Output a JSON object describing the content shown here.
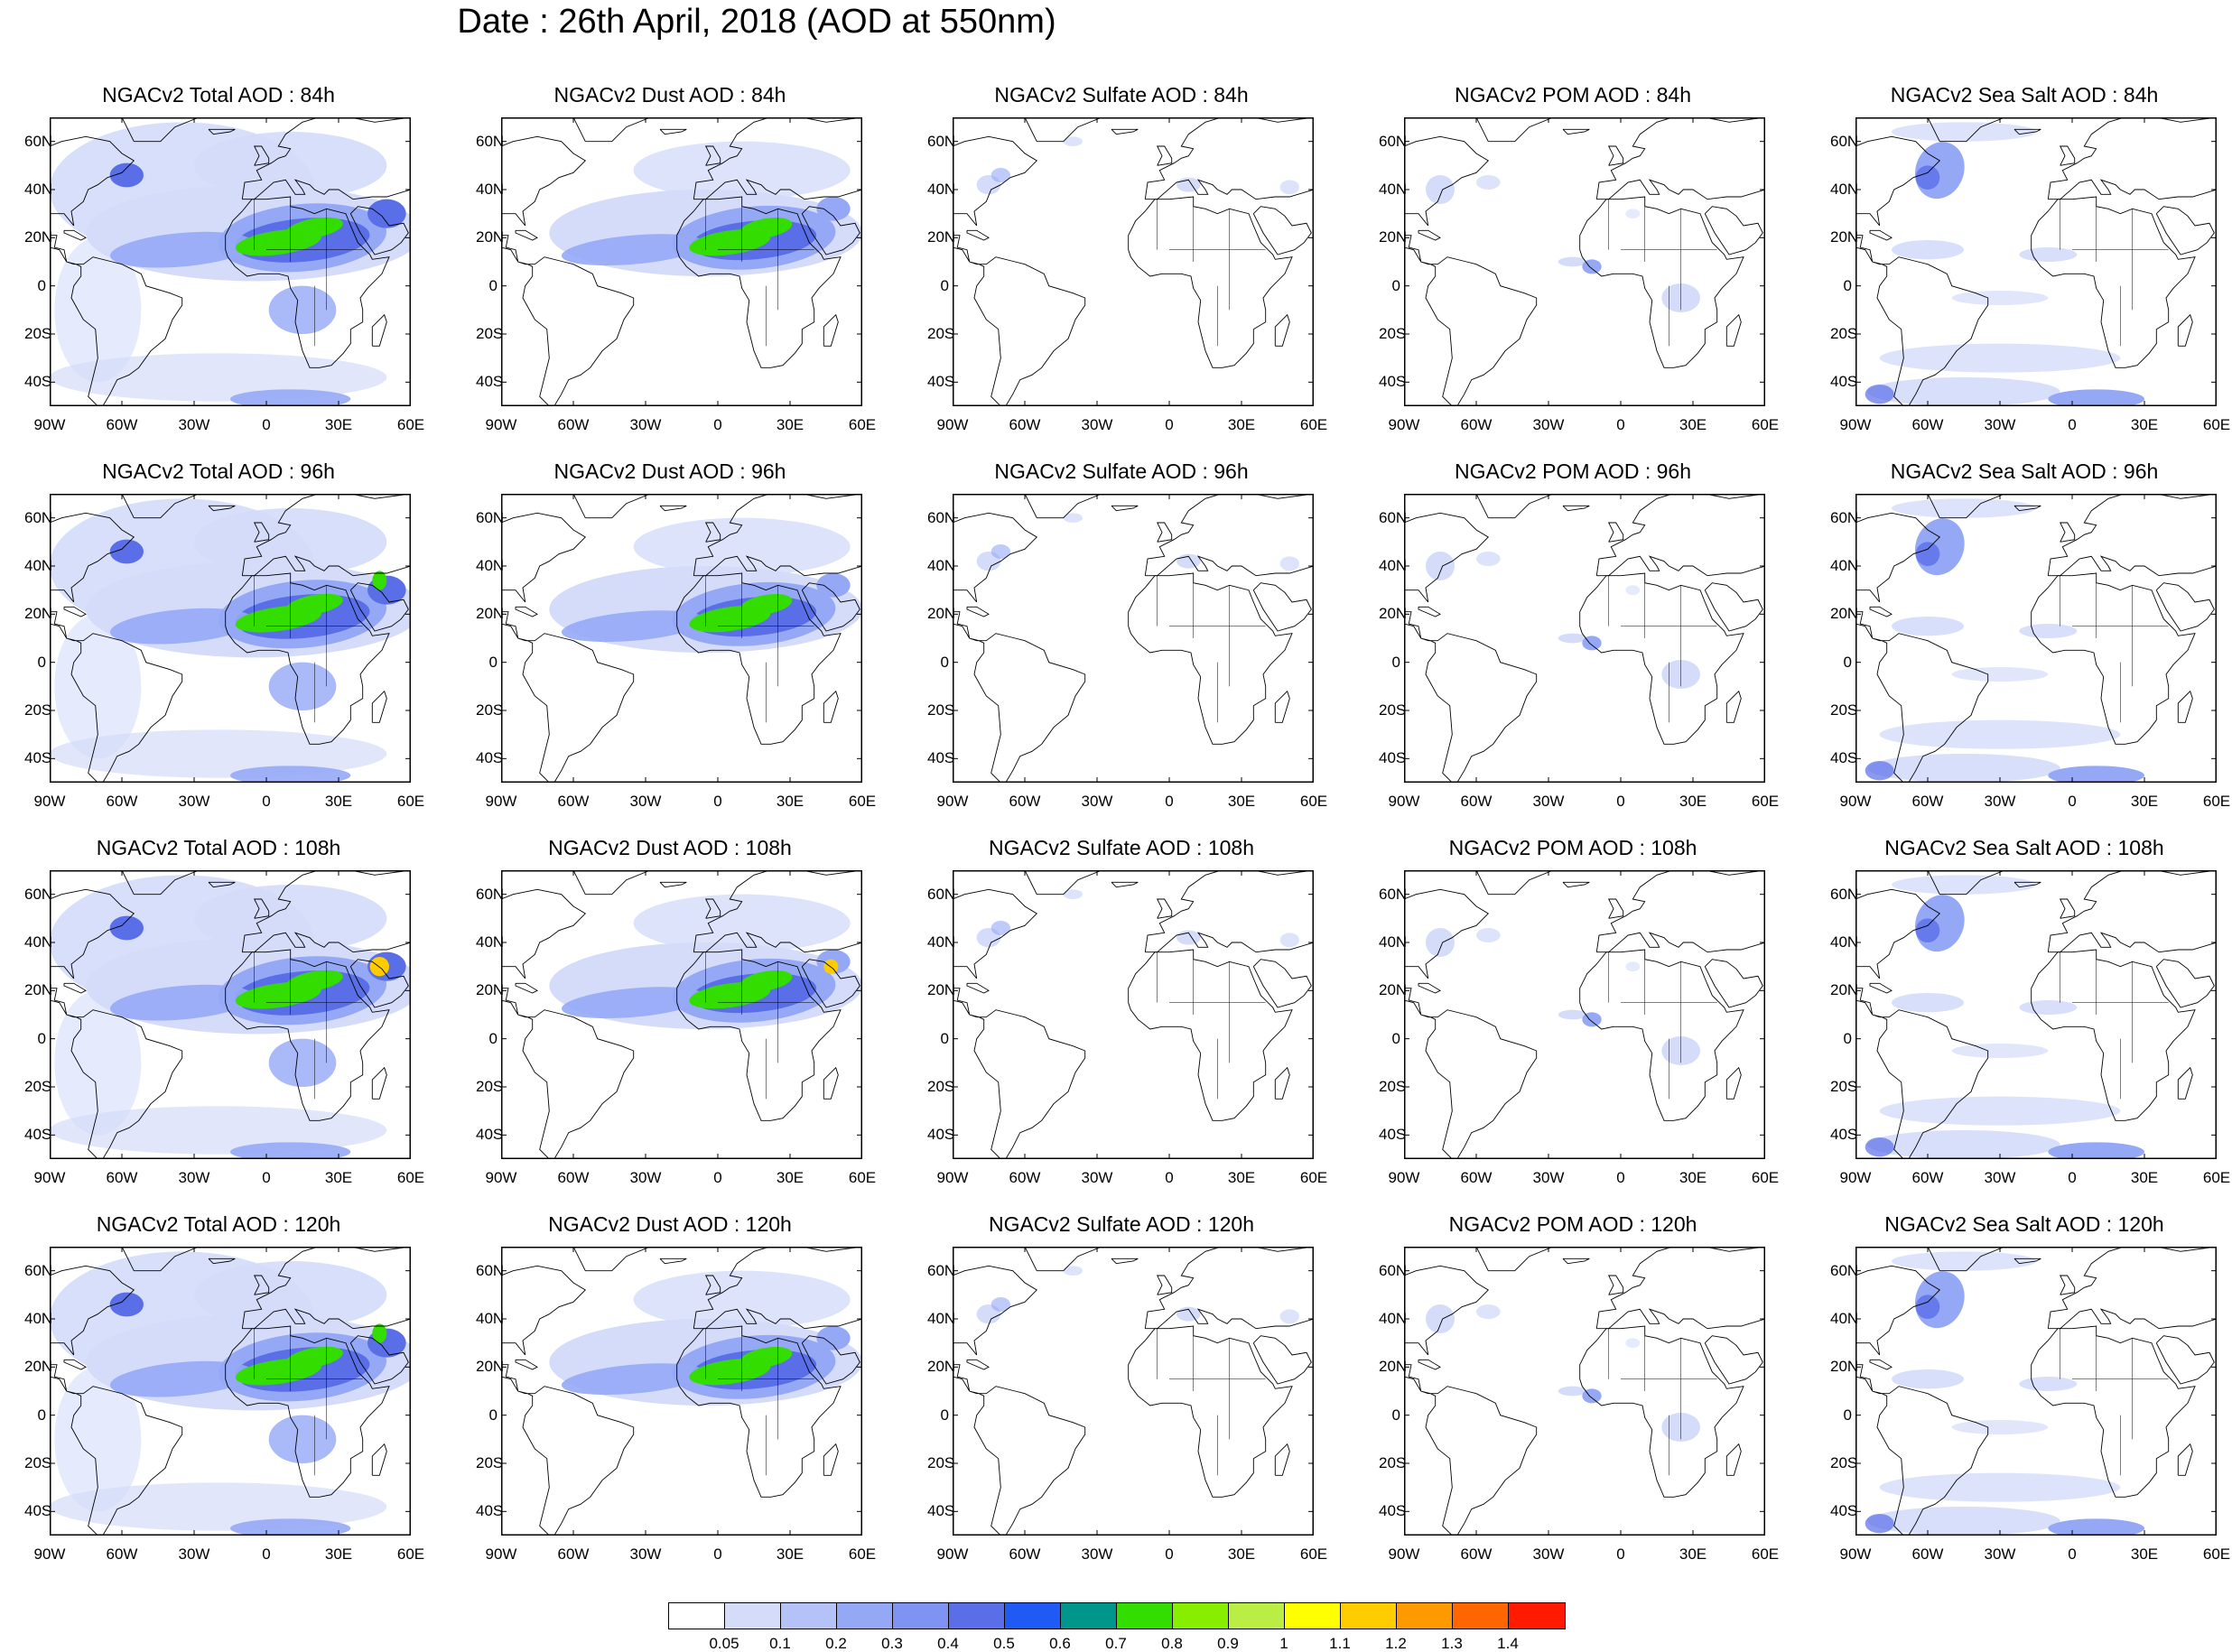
{
  "title": "Date : 26th April, 2018 (AOD at 550nm)",
  "map_data": {
    "type": "filled-contour-map-grid",
    "projection": "cylindrical-equidistant",
    "lon_range": [
      -90,
      60
    ],
    "lat_range": [
      -50,
      70
    ],
    "lat_ticks": [
      "60N",
      "40N",
      "20N",
      "0",
      "20S",
      "40S"
    ],
    "lat_tick_values": [
      60,
      40,
      20,
      0,
      -20,
      -40
    ],
    "lon_ticks": [
      "90W",
      "60W",
      "30W",
      "0",
      "30E",
      "60E"
    ],
    "lon_tick_values": [
      -90,
      -60,
      -30,
      0,
      30,
      60
    ],
    "species": [
      "Total",
      "Dust",
      "Sulfate",
      "POM",
      "Sea Salt"
    ],
    "panels": [
      [
        "NGACv2 Total AOD : 84h",
        "NGACv2 Dust AOD : 84h",
        "NGACv2 Sulfate AOD : 84h",
        "NGACv2 POM AOD : 84h",
        "NGACv2 Sea Salt AOD : 84h"
      ],
      [
        "NGACv2 Total AOD : 96h",
        "NGACv2 Dust AOD : 96h",
        "NGACv2 Sulfate AOD : 96h",
        "NGACv2 POM AOD : 96h",
        "NGACv2 Sea Salt AOD : 96h"
      ],
      [
        "NGACv2 Total AOD : 108h",
        "NGACv2 Dust AOD : 108h",
        "NGACv2 Sulfate AOD : 108h",
        "NGACv2 POM AOD : 108h",
        "NGACv2 Sea Salt AOD : 108h"
      ],
      [
        "NGACv2 Total AOD : 120h",
        "NGACv2 Dust AOD : 120h",
        "NGACv2 Sulfate AOD : 120h",
        "NGACv2 POM AOD : 120h",
        "NGACv2 Sea Salt  AOD : 120h"
      ]
    ],
    "forecast_hours": [
      84,
      96,
      108,
      120
    ],
    "colorbar": {
      "levels": [
        "0.05",
        "0.1",
        "0.2",
        "0.3",
        "0.4",
        "0.5",
        "0.6",
        "0.7",
        "0.8",
        "0.9",
        "1",
        "1.1",
        "1.2",
        "1.3",
        "1.4"
      ],
      "colors": [
        "#ffffff",
        "#d4dcfa",
        "#b4c2f8",
        "#95a8f6",
        "#7f94f2",
        "#5a6ee8",
        "#1f5af5",
        "#00968c",
        "#33dd00",
        "#88ee00",
        "#bbee44",
        "#ffff00",
        "#ffcc00",
        "#ff9900",
        "#ff6600",
        "#ff1a00"
      ]
    },
    "colors": {
      "land_outline": "#000000",
      "low": "#d4dcfa",
      "mid": "#95a8f6",
      "high": "#5a6ee8",
      "peak": "#33dd00",
      "max": "#ffcc00"
    }
  }
}
